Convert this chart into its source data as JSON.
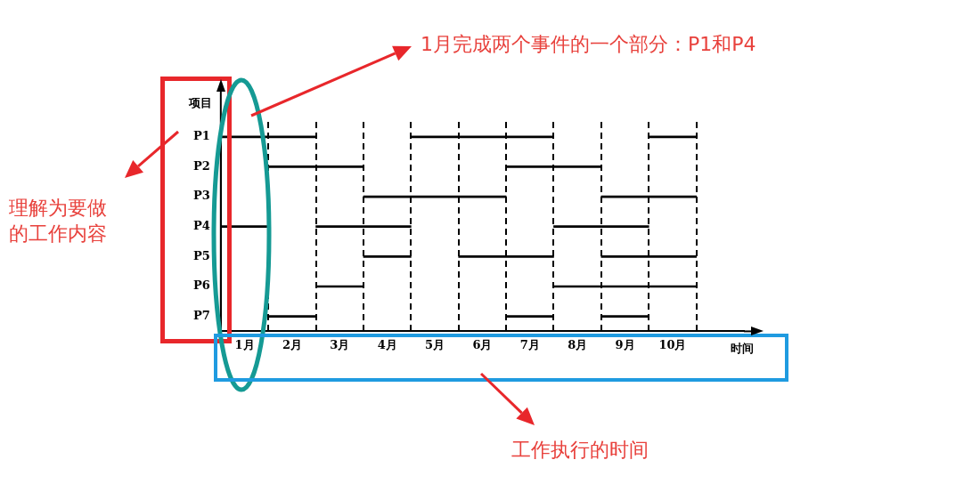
{
  "chart_data": {
    "type": "bar",
    "orientation": "horizontal",
    "xlabel": "时间",
    "ylabel": "项目",
    "categories": [
      "P1",
      "P2",
      "P3",
      "P4",
      "P5",
      "P6",
      "P7"
    ],
    "series": [
      {
        "color": "#000000",
        "base": [
          0,
          1,
          3,
          0,
          3,
          2,
          1
        ],
        "values": [
          2,
          2,
          3,
          1,
          1,
          1,
          1
        ]
      },
      {
        "color": "#000000",
        "base": [
          4,
          6,
          8,
          2,
          5,
          7,
          6
        ],
        "values": [
          3,
          2,
          2,
          2,
          2,
          3,
          1
        ]
      },
      {
        "color": "#000000",
        "base": [
          9,
          null,
          null,
          7,
          8,
          null,
          8
        ],
        "values": [
          1,
          null,
          null,
          2,
          2,
          null,
          1
        ]
      }
    ],
    "xlim": [
      0,
      11
    ],
    "xticks": [
      {
        "value": 0.5,
        "label": "1月"
      },
      {
        "value": 1.5,
        "label": "2月"
      },
      {
        "value": 2.5,
        "label": "3月"
      },
      {
        "value": 3.5,
        "label": "4月"
      },
      {
        "value": 4.5,
        "label": "5月"
      },
      {
        "value": 5.5,
        "label": "6月"
      },
      {
        "value": 6.5,
        "label": "7月"
      },
      {
        "value": 7.5,
        "label": "8月"
      },
      {
        "value": 8.5,
        "label": "9月"
      },
      {
        "value": 9.5,
        "label": "10月"
      },
      {
        "value": 1,
        "label": null
      },
      {
        "value": 2,
        "label": null
      },
      {
        "value": 3,
        "label": null
      },
      {
        "value": 4,
        "label": null
      },
      {
        "value": 5,
        "label": null
      },
      {
        "value": 6,
        "label": null
      },
      {
        "value": 7,
        "label": null
      },
      {
        "value": 8,
        "label": null
      },
      {
        "value": 9,
        "label": null
      },
      {
        "value": 10,
        "label": null
      }
    ],
    "grid": "x",
    "annotations": [
      "1月完成两个事件的一个部分：P1和P4",
      "理解为要做的工作内容",
      "工作执行的时间"
    ]
  }
}
